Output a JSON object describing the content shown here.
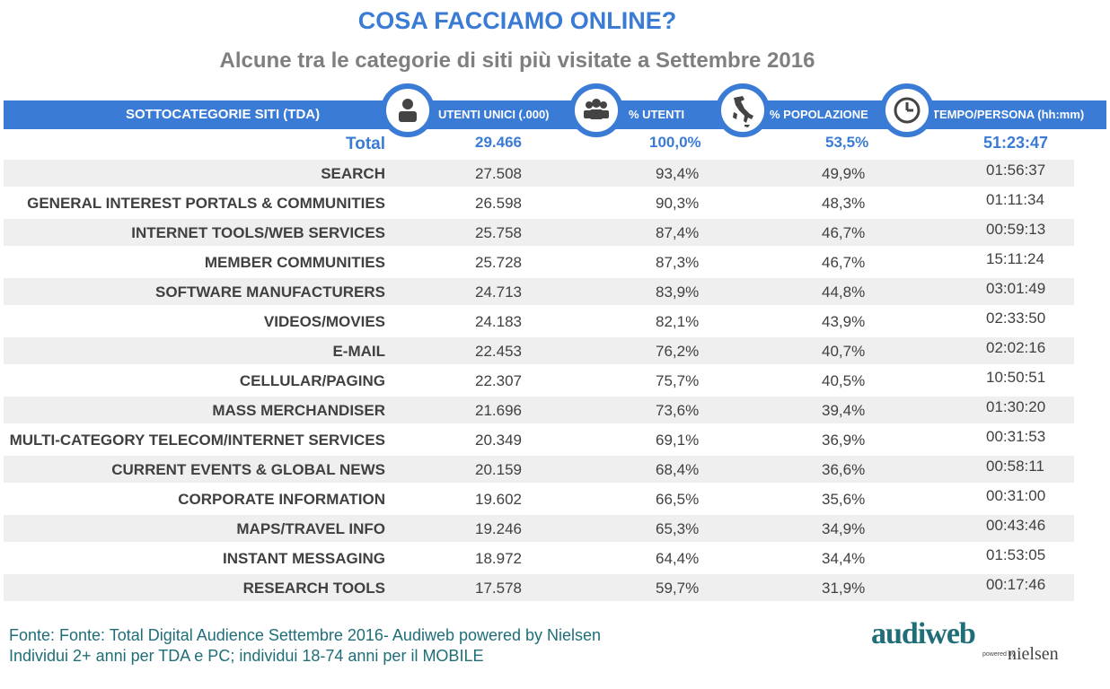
{
  "title": "COSA FACCIAMO ONLINE?",
  "subtitle": "Alcune tra le categorie di siti più visitate a Settembre 2016",
  "colors": {
    "accent": "#3A7BD5",
    "source_text": "#1F6E78",
    "row_shade": "#efefef"
  },
  "icons": [
    "person-icon",
    "group-icon",
    "italy-map-icon",
    "clock-icon"
  ],
  "chart_data": {
    "type": "table",
    "columns": [
      "SOTTOCATEGORIE SITI  (TDA)",
      "UTENTI UNICI (.000)",
      "% UTENTI",
      "% POPOLAZIONE",
      "TEMPO/PERSONA (hh:mm)"
    ],
    "total": {
      "label": "Total",
      "utenti_unici": "29.466",
      "pct_utenti": "100,0%",
      "pct_popolazione": "53,5%",
      "tempo": "51:23:47"
    },
    "rows": [
      {
        "label": "SEARCH",
        "utenti_unici": "27.508",
        "pct_utenti": "93,4%",
        "pct_popolazione": "49,9%",
        "tempo": "01:56:37"
      },
      {
        "label": "GENERAL INTEREST PORTALS & COMMUNITIES",
        "utenti_unici": "26.598",
        "pct_utenti": "90,3%",
        "pct_popolazione": "48,3%",
        "tempo": "01:11:34"
      },
      {
        "label": "INTERNET TOOLS/WEB SERVICES",
        "utenti_unici": "25.758",
        "pct_utenti": "87,4%",
        "pct_popolazione": "46,7%",
        "tempo": "00:59:13"
      },
      {
        "label": "MEMBER COMMUNITIES",
        "utenti_unici": "25.728",
        "pct_utenti": "87,3%",
        "pct_popolazione": "46,7%",
        "tempo": "15:11:24"
      },
      {
        "label": "SOFTWARE MANUFACTURERS",
        "utenti_unici": "24.713",
        "pct_utenti": "83,9%",
        "pct_popolazione": "44,8%",
        "tempo": "03:01:49"
      },
      {
        "label": "VIDEOS/MOVIES",
        "utenti_unici": "24.183",
        "pct_utenti": "82,1%",
        "pct_popolazione": "43,9%",
        "tempo": "02:33:50"
      },
      {
        "label": "E-MAIL",
        "utenti_unici": "22.453",
        "pct_utenti": "76,2%",
        "pct_popolazione": "40,7%",
        "tempo": "02:02:16"
      },
      {
        "label": "CELLULAR/PAGING",
        "utenti_unici": "22.307",
        "pct_utenti": "75,7%",
        "pct_popolazione": "40,5%",
        "tempo": "10:50:51"
      },
      {
        "label": "MASS MERCHANDISER",
        "utenti_unici": "21.696",
        "pct_utenti": "73,6%",
        "pct_popolazione": "39,4%",
        "tempo": "01:30:20"
      },
      {
        "label": "MULTI-CATEGORY TELECOM/INTERNET SERVICES",
        "utenti_unici": "20.349",
        "pct_utenti": "69,1%",
        "pct_popolazione": "36,9%",
        "tempo": "00:31:53"
      },
      {
        "label": "CURRENT EVENTS & GLOBAL NEWS",
        "utenti_unici": "20.159",
        "pct_utenti": "68,4%",
        "pct_popolazione": "36,6%",
        "tempo": "00:58:11"
      },
      {
        "label": "CORPORATE INFORMATION",
        "utenti_unici": "19.602",
        "pct_utenti": "66,5%",
        "pct_popolazione": "35,6%",
        "tempo": "00:31:00"
      },
      {
        "label": "MAPS/TRAVEL INFO",
        "utenti_unici": "19.246",
        "pct_utenti": "65,3%",
        "pct_popolazione": "34,9%",
        "tempo": "00:43:46"
      },
      {
        "label": "INSTANT MESSAGING",
        "utenti_unici": "18.972",
        "pct_utenti": "64,4%",
        "pct_popolazione": "34,4%",
        "tempo": "01:53:05"
      },
      {
        "label": "RESEARCH TOOLS",
        "utenti_unici": "17.578",
        "pct_utenti": "59,7%",
        "pct_popolazione": "31,9%",
        "tempo": "00:17:46"
      }
    ]
  },
  "source": {
    "line1": "Fonte: Fonte: Total Digital Audience Settembre 2016- Audiweb powered by Nielsen",
    "line2": "Individui 2+ anni per TDA e PC; individui 18-74 anni per il MOBILE"
  },
  "logo": {
    "main": "audiweb",
    "powered": "powered by",
    "nielsen": "nielsen"
  }
}
